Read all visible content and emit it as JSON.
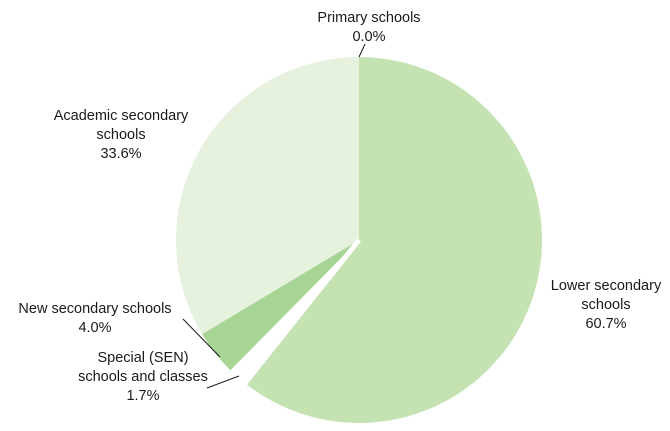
{
  "chart_data": {
    "type": "pie",
    "title": "",
    "slices": [
      {
        "name": "Primary schools",
        "value": 0.0,
        "label": "0.0%",
        "color": "#c5e2b3"
      },
      {
        "name": "Lower secondary schools",
        "value": 60.7,
        "label": "60.7%",
        "color": "#c5e2b3"
      },
      {
        "name": "Special (SEN) schools and classes",
        "value": 1.7,
        "label": "1.7%",
        "color": "#ffffff"
      },
      {
        "name": "New secondary schools",
        "value": 4.0,
        "label": "4.0%",
        "color": "#a8d595"
      },
      {
        "name": "Academic secondary schools",
        "value": 33.6,
        "label": "33.6%",
        "color": "#e6f2dd"
      }
    ],
    "start_angle": "12 o'clock",
    "direction": "clockwise",
    "legend": "none"
  }
}
